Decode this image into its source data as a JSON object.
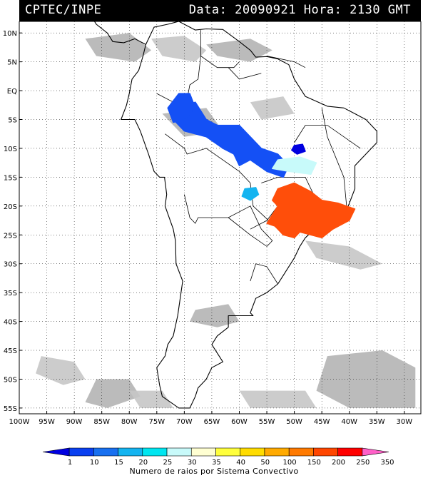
{
  "header": {
    "source": "CPTEC/INPE",
    "datetime": "Data: 20090921 Hora: 2130 GMT"
  },
  "map": {
    "lat_labels": [
      "10N",
      "5N",
      "EQ",
      "5S",
      "10S",
      "15S",
      "20S",
      "25S",
      "30S",
      "35S",
      "40S",
      "45S",
      "50S",
      "55S"
    ],
    "lat_values": [
      10,
      5,
      0,
      -5,
      -10,
      -15,
      -20,
      -25,
      -30,
      -35,
      -40,
      -45,
      -50,
      -55
    ],
    "lon_labels": [
      "100W",
      "95W",
      "90W",
      "85W",
      "80W",
      "75W",
      "70W",
      "65W",
      "60W",
      "55W",
      "50W",
      "45W",
      "40W",
      "35W",
      "30W"
    ],
    "lon_values": [
      -100,
      -95,
      -90,
      -85,
      -80,
      -75,
      -70,
      -65,
      -60,
      -55,
      -50,
      -45,
      -40,
      -35,
      -30
    ],
    "extent": {
      "lon_min": -100,
      "lon_max": -27,
      "lat_min": -56,
      "lat_max": 12
    }
  },
  "colorbar": {
    "ticks": [
      "1",
      "10",
      "15",
      "20",
      "25",
      "30",
      "35",
      "40",
      "50",
      "100",
      "150",
      "200",
      "250",
      "350"
    ],
    "colors": [
      "#0000e0",
      "#0a40f0",
      "#1870f0",
      "#14b4f0",
      "#00e6f0",
      "#c8fafa",
      "#ffffd2",
      "#ffff3c",
      "#ffdc00",
      "#ffaa00",
      "#ff7a00",
      "#ff4600",
      "#ff0000",
      "#ff60c8"
    ],
    "title": "Numero de raios por Sistema Convectivo"
  },
  "systems": [
    {
      "name": "amazon-north-system",
      "color": "#1450f5",
      "lon": [
        -72,
        -68,
        -66,
        -64,
        -60,
        -58,
        -56,
        -53,
        -51,
        -52,
        -55,
        -58,
        -60,
        -61,
        -63,
        -66,
        -70,
        -72
      ],
      "lat": [
        -3,
        -2,
        -5,
        -6,
        -6,
        -8,
        -10,
        -11,
        -13,
        -15,
        -14,
        -12,
        -13,
        -11,
        -10,
        -8,
        -7,
        -5
      ]
    },
    {
      "name": "amazon-west-system",
      "color": "#1450f5",
      "lon": [
        -71,
        -69,
        -68,
        -70,
        -72,
        -73
      ],
      "lat": [
        -0.5,
        -0.5,
        -3,
        -5,
        -5.5,
        -3
      ]
    },
    {
      "name": "tocantins-system",
      "color": "#0000e0",
      "lon": [
        -50,
        -48.5,
        -48,
        -49.5,
        -50.5
      ],
      "lat": [
        -9.5,
        -9.3,
        -10.5,
        -11,
        -10.3
      ]
    },
    {
      "name": "goias-system",
      "color": "#c8fafa",
      "lon": [
        -53,
        -49,
        -46,
        -47,
        -51,
        -54
      ],
      "lat": [
        -12,
        -11.5,
        -12.5,
        -14.5,
        -14,
        -13.5
      ]
    },
    {
      "name": "mato-grosso-system",
      "color": "#14b4f0",
      "lon": [
        -59,
        -57,
        -56.5,
        -58,
        -59.5
      ],
      "lat": [
        -17,
        -16.8,
        -18,
        -19,
        -18.3
      ]
    },
    {
      "name": "southeast-system",
      "color": "#ff4e0a",
      "lon": [
        -53,
        -50,
        -47,
        -45,
        -42,
        -39,
        -40,
        -43,
        -45,
        -47,
        -49,
        -50,
        -52,
        -53.5,
        -55,
        -53,
        -54
      ],
      "lat": [
        -17,
        -16,
        -17.5,
        -19,
        -19.5,
        -20.5,
        -22.5,
        -24,
        -25.5,
        -25,
        -24.5,
        -25.5,
        -25,
        -23.5,
        -23,
        -20,
        -19
      ]
    }
  ]
}
